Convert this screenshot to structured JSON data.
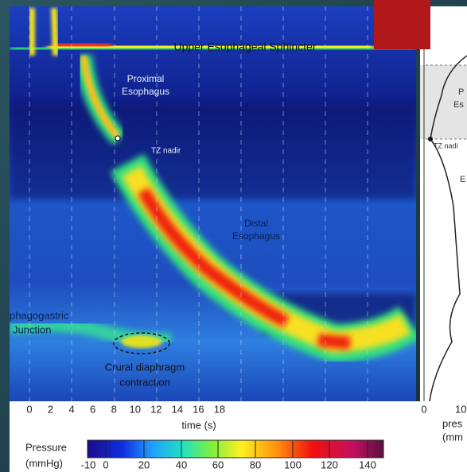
{
  "plot": {
    "annotations": {
      "ues": "Upper Esophageal Sphincter",
      "proximal": [
        "Proximal",
        "Esophagus"
      ],
      "tz": "TZ nadir",
      "distal": [
        "Distal",
        "Esophagus"
      ],
      "egj": [
        "phagogastric",
        "Junction"
      ],
      "crural": [
        "Crural diaphragm",
        "contraction"
      ]
    },
    "x_axis": {
      "title": "time (s)",
      "ticks": [
        "0",
        "2",
        "4",
        "6",
        "8",
        "10",
        "12",
        "14",
        "16",
        "18"
      ]
    }
  },
  "side_panel": {
    "labels": [
      "P",
      "Es",
      "TZ nadi",
      "E"
    ],
    "tick": "0",
    "tick2": "10",
    "axis_title": [
      "pres",
      "(mm"
    ]
  },
  "colorbar": {
    "title": [
      "Pressure",
      "(mmHg)"
    ],
    "ticks": [
      "-10",
      "0",
      "20",
      "40",
      "60",
      "80",
      "100",
      "120",
      "140"
    ]
  }
}
